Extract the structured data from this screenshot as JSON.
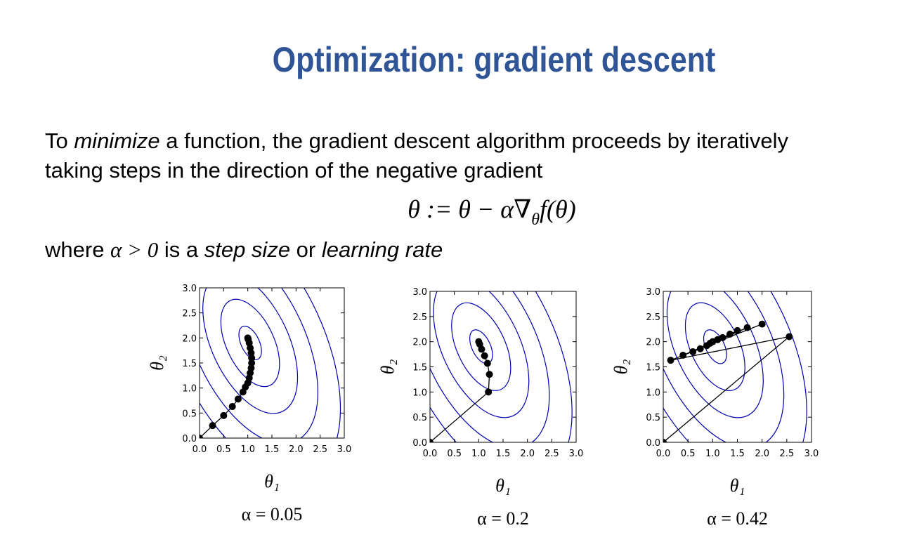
{
  "title": "Optimization: gradient descent",
  "paragraph": {
    "line1": [
      "To ",
      "minimize",
      " a function, the gradient descent algorithm proceeds by iteratively"
    ],
    "line2": "taking steps in the direction of the negative gradient",
    "formula": [
      "θ := θ − α∇",
      "θ",
      "f(θ)"
    ],
    "line3": [
      "where ",
      "α > 0",
      " is a ",
      "step size",
      " or ",
      "learning rate"
    ]
  },
  "chart_data": [
    {
      "type": "line",
      "xlabel": "θ₁",
      "ylabel": "θ₂",
      "caption": "α = 0.05",
      "x": [
        0,
        0.27,
        0.5,
        0.68,
        0.8,
        0.9,
        0.95,
        1.0,
        1.03,
        1.05,
        1.07,
        1.08,
        1.08,
        1.07,
        1.05,
        1.03,
        1.01,
        1.0
      ],
      "series": [
        {
          "color": "#000000",
          "values": [
            0,
            0.25,
            0.45,
            0.63,
            0.78,
            0.92,
            1.02,
            1.1,
            1.2,
            1.3,
            1.4,
            1.5,
            1.6,
            1.7,
            1.8,
            1.9,
            1.97,
            2.0
          ]
        }
      ],
      "xlim": [
        0,
        3
      ],
      "ylim": [
        0,
        3
      ],
      "xticks": [
        {
          "value": 0,
          "label": "0.0"
        },
        {
          "value": 0.5,
          "label": "0.5"
        },
        {
          "value": 1,
          "label": "1.0"
        },
        {
          "value": 1.5,
          "label": "1.5"
        },
        {
          "value": 2,
          "label": "2.0"
        },
        {
          "value": 2.5,
          "label": "2.5"
        },
        {
          "value": 3,
          "label": "3.0"
        }
      ],
      "yticks": [
        {
          "value": 0,
          "label": "0.0"
        },
        {
          "value": 0.5,
          "label": "0.5"
        },
        {
          "value": 1,
          "label": "1.0"
        },
        {
          "value": 1.5,
          "label": "1.5"
        },
        {
          "value": 2,
          "label": "2.0"
        },
        {
          "value": 2.5,
          "label": "2.5"
        },
        {
          "value": 3,
          "label": "3.0"
        }
      ]
    },
    {
      "type": "line",
      "xlabel": "θ₁",
      "ylabel": "θ₂",
      "caption": "α = 0.2",
      "x": [
        0,
        1.2,
        1.22,
        1.18,
        1.12,
        1.06,
        1.02,
        1.0
      ],
      "series": [
        {
          "color": "#000000",
          "values": [
            0,
            1.0,
            1.35,
            1.57,
            1.72,
            1.85,
            1.95,
            2.0
          ]
        }
      ],
      "xlim": [
        0,
        3
      ],
      "ylim": [
        0,
        3
      ],
      "xticks": [
        {
          "value": 0,
          "label": "0.0"
        },
        {
          "value": 0.5,
          "label": "0.5"
        },
        {
          "value": 1,
          "label": "1.0"
        },
        {
          "value": 1.5,
          "label": "1.5"
        },
        {
          "value": 2,
          "label": "2.0"
        },
        {
          "value": 2.5,
          "label": "2.5"
        },
        {
          "value": 3,
          "label": "3.0"
        }
      ],
      "yticks": [
        {
          "value": 0,
          "label": "0.0"
        },
        {
          "value": 0.5,
          "label": "0.5"
        },
        {
          "value": 1,
          "label": "1.0"
        },
        {
          "value": 1.5,
          "label": "1.5"
        },
        {
          "value": 2,
          "label": "2.0"
        },
        {
          "value": 2.5,
          "label": "2.5"
        },
        {
          "value": 3,
          "label": "3.0"
        }
      ]
    },
    {
      "type": "line",
      "xlabel": "θ₁",
      "ylabel": "θ₂",
      "caption": "α = 0.42",
      "x": [
        0,
        2.55,
        0.15,
        2.0,
        0.4,
        1.7,
        0.6,
        1.5,
        0.75,
        1.35,
        0.88,
        1.2,
        0.95,
        1.1,
        1.0
      ],
      "series": [
        {
          "color": "#000000",
          "values": [
            0,
            2.1,
            1.63,
            2.35,
            1.73,
            2.28,
            1.8,
            2.22,
            1.86,
            2.15,
            1.92,
            2.08,
            1.97,
            2.04,
            2.0
          ]
        }
      ],
      "xlim": [
        0,
        3
      ],
      "ylim": [
        0,
        3
      ],
      "xticks": [
        {
          "value": 0,
          "label": "0.0"
        },
        {
          "value": 0.5,
          "label": "0.5"
        },
        {
          "value": 1,
          "label": "1.0"
        },
        {
          "value": 1.5,
          "label": "1.5"
        },
        {
          "value": 2,
          "label": "2.0"
        },
        {
          "value": 2.5,
          "label": "2.5"
        },
        {
          "value": 3,
          "label": "3.0"
        }
      ],
      "yticks": [
        {
          "value": 0,
          "label": "0.0"
        },
        {
          "value": 0.5,
          "label": "0.5"
        },
        {
          "value": 1,
          "label": "1.0"
        },
        {
          "value": 1.5,
          "label": "1.5"
        },
        {
          "value": 2,
          "label": "2.0"
        },
        {
          "value": 2.5,
          "label": "2.5"
        },
        {
          "value": 3,
          "label": "3.0"
        }
      ]
    }
  ]
}
